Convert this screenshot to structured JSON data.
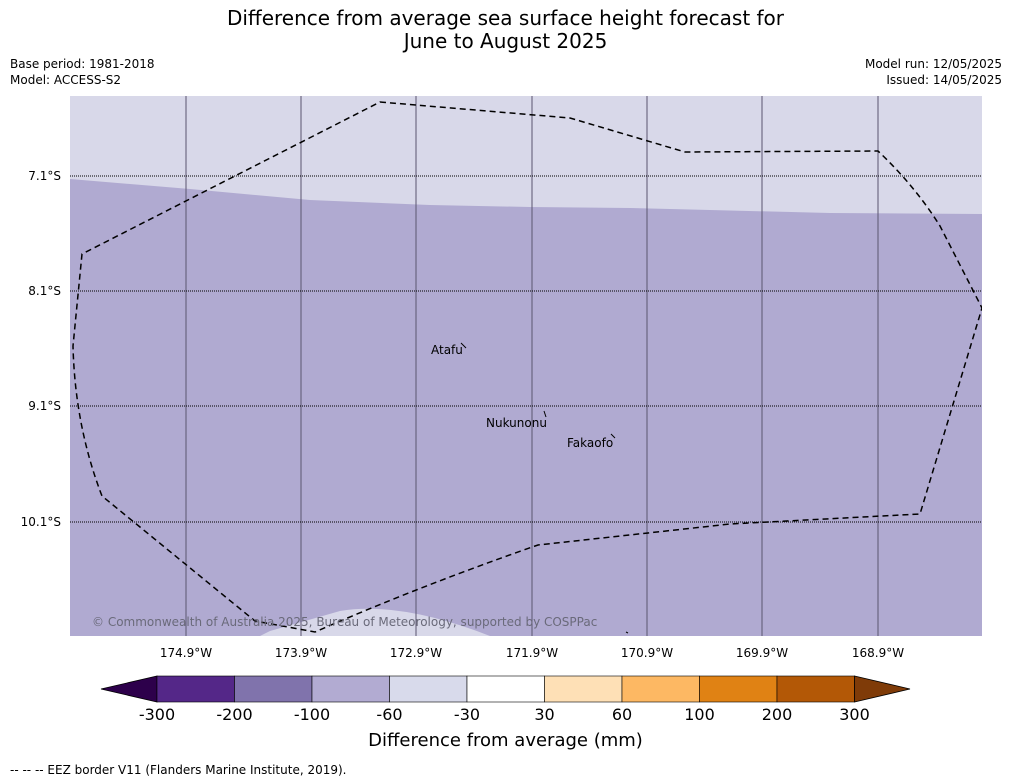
{
  "title": {
    "line1": "Difference from average sea surface height forecast for",
    "line2": "June to August 2025"
  },
  "meta_left": {
    "base_period": "Base period: 1981-2018",
    "model": "Model: ACCESS-S2"
  },
  "meta_right": {
    "model_run": "Model run: 12/05/2025",
    "issued": "Issued: 14/05/2025"
  },
  "map": {
    "lat_labels": [
      "7.1°S",
      "8.1°S",
      "9.1°S",
      "10.1°S"
    ],
    "lon_labels": [
      "174.9°W",
      "173.9°W",
      "172.9°W",
      "171.9°W",
      "170.9°W",
      "169.9°W",
      "168.9°W"
    ],
    "places": [
      "Atafu",
      "Nukunonu",
      "Fakaofo"
    ],
    "copyright": "© Commonwealth of Australia 2025, Bureau of Meteorology, supported by COSPPac",
    "fill_colors": {
      "band_minus60_minus30": "#d8d8e9",
      "band_minus100_minus60": "#b0aad1"
    }
  },
  "colorbar": {
    "ticks": [
      "-300",
      "-200",
      "-100",
      "-60",
      "-30",
      "30",
      "60",
      "100",
      "200",
      "300"
    ],
    "colors": [
      "#2d004b",
      "#542788",
      "#8073ac",
      "#b2abd2",
      "#d8daeb",
      "#ffffff",
      "#fee0b6",
      "#fdb863",
      "#e08214",
      "#b35806",
      "#7f3b08"
    ],
    "label": "Difference from average (mm)"
  },
  "footnote": "--  --  -- EEZ border V11 (Flanders Marine Institute, 2019)."
}
